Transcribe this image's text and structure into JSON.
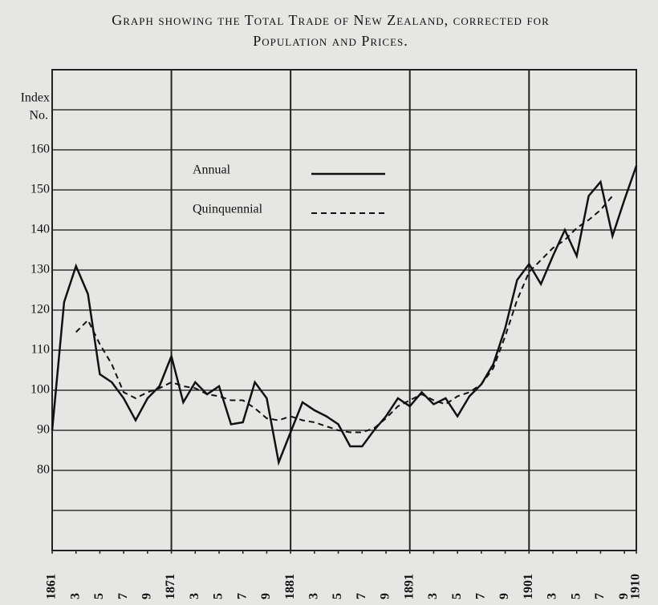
{
  "chart_data": {
    "type": "line",
    "title": [
      "Graph showing the Total Trade of New Zealand, corrected for",
      "Population and Prices."
    ],
    "ylabel": [
      "Index",
      "No."
    ],
    "x": [
      1861,
      1862,
      1863,
      1864,
      1865,
      1866,
      1867,
      1868,
      1869,
      1870,
      1871,
      1872,
      1873,
      1874,
      1875,
      1876,
      1877,
      1878,
      1879,
      1880,
      1881,
      1882,
      1883,
      1884,
      1885,
      1886,
      1887,
      1888,
      1889,
      1890,
      1891,
      1892,
      1893,
      1894,
      1895,
      1896,
      1897,
      1898,
      1899,
      1900,
      1901,
      1902,
      1903,
      1904,
      1905,
      1906,
      1907,
      1908,
      1909,
      1910
    ],
    "series": [
      {
        "name": "Annual",
        "color": "#111111",
        "dash": false,
        "values": [
          90,
          122,
          131,
          124,
          104,
          102,
          98,
          92.5,
          98,
          101,
          108.5,
          97,
          102,
          99,
          101,
          91.5,
          92,
          102,
          98,
          82,
          89.5,
          97,
          95,
          93.5,
          91.5,
          86,
          86,
          90,
          93.5,
          98,
          96,
          99.5,
          96.5,
          98,
          93.5,
          98.5,
          101.5,
          106.5,
          115.5,
          127.5,
          131.5,
          126.5,
          133.5,
          140,
          133.5,
          148.5,
          152,
          138.5,
          147.5,
          156
        ]
      },
      {
        "name": "Quinquennial",
        "color": "#111111",
        "dash": true,
        "values": [
          null,
          null,
          114.5,
          117.5,
          111.5,
          106.5,
          99.5,
          98,
          99.5,
          100.5,
          102,
          101,
          100.5,
          99,
          98.5,
          97.5,
          97.5,
          95.5,
          93,
          92.5,
          93.5,
          92.5,
          92,
          91,
          90,
          89.5,
          89.5,
          90.5,
          93,
          96,
          97.5,
          99,
          97.5,
          96.5,
          98.5,
          99.5,
          101.5,
          105.5,
          113.5,
          122.5,
          129.5,
          132.5,
          135.5,
          137.5,
          140.5,
          142.5,
          145,
          148.5,
          null,
          null
        ]
      }
    ],
    "xlim": [
      1861,
      1910
    ],
    "xticks": [
      1861,
      {
        "value": 1863,
        "label": "3"
      },
      {
        "value": 1865,
        "label": "5"
      },
      {
        "value": 1867,
        "label": "7"
      },
      {
        "value": 1869,
        "label": "9"
      },
      1871,
      {
        "value": 1873,
        "label": "3"
      },
      {
        "value": 1875,
        "label": "5"
      },
      {
        "value": 1877,
        "label": "7"
      },
      {
        "value": 1879,
        "label": "9"
      },
      1881,
      {
        "value": 1883,
        "label": "3"
      },
      {
        "value": 1885,
        "label": "5"
      },
      {
        "value": 1887,
        "label": "7"
      },
      {
        "value": 1889,
        "label": "9"
      },
      1891,
      {
        "value": 1893,
        "label": "3"
      },
      {
        "value": 1895,
        "label": "5"
      },
      {
        "value": 1897,
        "label": "7"
      },
      {
        "value": 1899,
        "label": "9"
      },
      1901,
      {
        "value": 1903,
        "label": "3"
      },
      {
        "value": 1905,
        "label": "5"
      },
      {
        "value": 1907,
        "label": "7"
      },
      {
        "value": 1909,
        "label": "9"
      },
      1910
    ],
    "xgrid": [
      1871,
      1881,
      1891,
      1901
    ],
    "ylim": [
      60,
      180
    ],
    "yticks": [
      80,
      90,
      100,
      110,
      120,
      130,
      140,
      150,
      160
    ],
    "minor_yticks": [
      70,
      170
    ],
    "grid": true,
    "legend": "upper center"
  }
}
